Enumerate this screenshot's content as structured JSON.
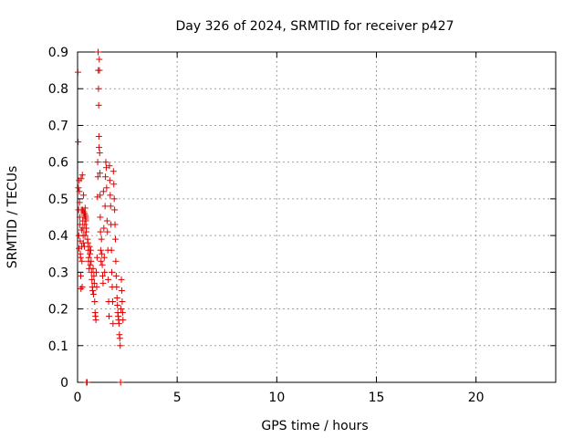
{
  "chart_data": {
    "type": "scatter",
    "title": "Day 326 of 2024, SRMTID for receiver p427",
    "xlabel": "GPS time / hours",
    "ylabel": "SRMTID / TECUs",
    "xlim": [
      0,
      24
    ],
    "ylim": [
      0,
      0.9
    ],
    "xticks": [
      0,
      5,
      10,
      15,
      20
    ],
    "xtick_labels": [
      "0",
      "5",
      "10",
      "15",
      "20"
    ],
    "yticks": [
      0,
      0.1,
      0.2,
      0.3,
      0.4,
      0.5,
      0.6,
      0.7,
      0.8,
      0.9
    ],
    "ytick_labels": [
      "0",
      "0.1",
      "0.2",
      "0.3",
      "0.4",
      "0.5",
      "0.6",
      "0.7",
      "0.8",
      "0.9"
    ],
    "grid": true,
    "marker": "+",
    "color": "#e00000",
    "series": [
      {
        "name": "SRMTID",
        "points": [
          [
            0.02,
            0.845
          ],
          [
            0.03,
            0.655
          ],
          [
            0.04,
            0.53
          ],
          [
            0.05,
            0.47
          ],
          [
            0.06,
            0.4
          ],
          [
            0.07,
            0.365
          ],
          [
            0.08,
            0.55
          ],
          [
            0.09,
            0.52
          ],
          [
            0.1,
            0.49
          ],
          [
            0.11,
            0.45
          ],
          [
            0.12,
            0.43
          ],
          [
            0.13,
            0.385
          ],
          [
            0.14,
            0.35
          ],
          [
            0.15,
            0.34
          ],
          [
            0.16,
            0.29
          ],
          [
            0.17,
            0.255
          ],
          [
            0.18,
            0.555
          ],
          [
            0.19,
            0.47
          ],
          [
            0.2,
            0.415
          ],
          [
            0.21,
            0.37
          ],
          [
            0.22,
            0.33
          ],
          [
            0.23,
            0.26
          ],
          [
            0.24,
            0.565
          ],
          [
            0.25,
            0.47
          ],
          [
            0.26,
            0.44
          ],
          [
            0.27,
            0.42
          ],
          [
            0.28,
            0.4
          ],
          [
            0.29,
            0.38
          ],
          [
            0.3,
            0.51
          ],
          [
            0.31,
            0.465
          ],
          [
            0.32,
            0.46
          ],
          [
            0.33,
            0.455
          ],
          [
            0.34,
            0.37
          ],
          [
            0.35,
            0.46
          ],
          [
            0.36,
            0.43
          ],
          [
            0.37,
            0.4
          ],
          [
            0.38,
            0.475
          ],
          [
            0.39,
            0.455
          ],
          [
            0.4,
            0.445
          ],
          [
            0.41,
            0.45
          ],
          [
            0.42,
            0.44
          ],
          [
            0.43,
            0.41
          ],
          [
            0.44,
            0.42
          ],
          [
            0.45,
            0.0
          ],
          [
            0.46,
            0.0
          ],
          [
            0.47,
            0.0
          ],
          [
            0.48,
            0.0
          ],
          [
            0.5,
            0.39
          ],
          [
            0.52,
            0.38
          ],
          [
            0.54,
            0.36
          ],
          [
            0.55,
            0.33
          ],
          [
            0.56,
            0.34
          ],
          [
            0.58,
            0.31
          ],
          [
            0.6,
            0.37
          ],
          [
            0.62,
            0.35
          ],
          [
            0.64,
            0.32
          ],
          [
            0.66,
            0.36
          ],
          [
            0.68,
            0.33
          ],
          [
            0.7,
            0.3
          ],
          [
            0.72,
            0.28
          ],
          [
            0.74,
            0.26
          ],
          [
            0.76,
            0.25
          ],
          [
            0.78,
            0.31
          ],
          [
            0.8,
            0.24
          ],
          [
            0.82,
            0.29
          ],
          [
            0.84,
            0.27
          ],
          [
            0.86,
            0.22
          ],
          [
            0.88,
            0.19
          ],
          [
            0.9,
            0.18
          ],
          [
            0.92,
            0.17
          ],
          [
            0.94,
            0.3
          ],
          [
            0.96,
            0.26
          ],
          [
            0.98,
            0.34
          ],
          [
            1.0,
            0.505
          ],
          [
            1.01,
            0.6
          ],
          [
            1.02,
            0.56
          ],
          [
            1.03,
            0.9
          ],
          [
            1.04,
            0.85
          ],
          [
            1.05,
            0.8
          ],
          [
            1.06,
            0.755
          ],
          [
            1.07,
            0.67
          ],
          [
            1.08,
            0.64
          ],
          [
            1.09,
            0.88
          ],
          [
            1.1,
            0.85
          ],
          [
            1.11,
            0.625
          ],
          [
            1.12,
            0.57
          ],
          [
            1.13,
            0.51
          ],
          [
            1.14,
            0.45
          ],
          [
            1.15,
            0.41
          ],
          [
            1.16,
            0.36
          ],
          [
            1.18,
            0.33
          ],
          [
            1.2,
            0.39
          ],
          [
            1.22,
            0.35
          ],
          [
            1.24,
            0.32
          ],
          [
            1.26,
            0.29
          ],
          [
            1.28,
            0.27
          ],
          [
            1.3,
            0.52
          ],
          [
            1.32,
            0.42
          ],
          [
            1.34,
            0.34
          ],
          [
            1.36,
            0.3
          ],
          [
            1.38,
            0.48
          ],
          [
            1.4,
            0.56
          ],
          [
            1.42,
            0.6
          ],
          [
            1.44,
            0.585
          ],
          [
            1.46,
            0.53
          ],
          [
            1.48,
            0.44
          ],
          [
            1.5,
            0.41
          ],
          [
            1.52,
            0.36
          ],
          [
            1.54,
            0.28
          ],
          [
            1.56,
            0.22
          ],
          [
            1.58,
            0.18
          ],
          [
            1.6,
            0.59
          ],
          [
            1.62,
            0.55
          ],
          [
            1.64,
            0.51
          ],
          [
            1.66,
            0.48
          ],
          [
            1.68,
            0.43
          ],
          [
            1.7,
            0.36
          ],
          [
            1.72,
            0.3
          ],
          [
            1.74,
            0.26
          ],
          [
            1.76,
            0.22
          ],
          [
            1.78,
            0.16
          ],
          [
            1.8,
            0.575
          ],
          [
            1.82,
            0.54
          ],
          [
            1.84,
            0.5
          ],
          [
            1.86,
            0.47
          ],
          [
            1.88,
            0.43
          ],
          [
            1.9,
            0.39
          ],
          [
            1.92,
            0.33
          ],
          [
            1.94,
            0.29
          ],
          [
            1.96,
            0.26
          ],
          [
            1.98,
            0.23
          ],
          [
            2.0,
            0.21
          ],
          [
            2.02,
            0.19
          ],
          [
            2.04,
            0.18
          ],
          [
            2.06,
            0.17
          ],
          [
            2.08,
            0.16
          ],
          [
            2.1,
            0.13
          ],
          [
            2.12,
            0.12
          ],
          [
            2.14,
            0.1
          ],
          [
            2.16,
            0.0
          ],
          [
            2.18,
            0.2
          ],
          [
            2.2,
            0.28
          ],
          [
            2.22,
            0.25
          ],
          [
            2.24,
            0.22
          ],
          [
            2.26,
            0.19
          ],
          [
            2.28,
            0.17
          ]
        ]
      }
    ]
  }
}
